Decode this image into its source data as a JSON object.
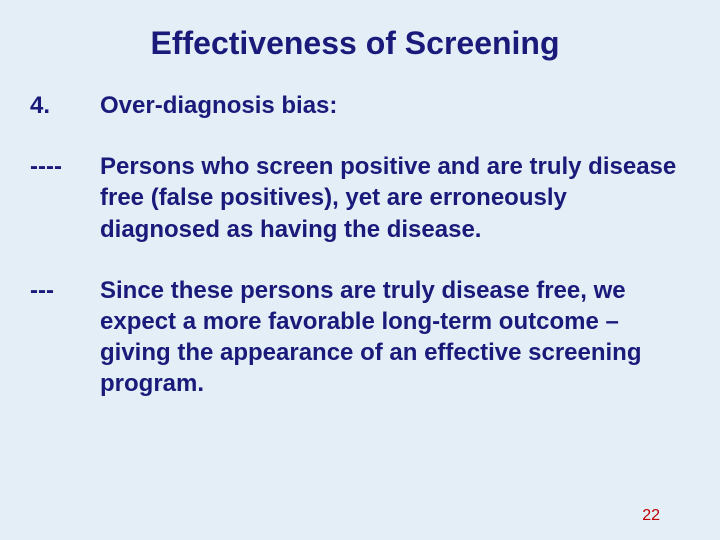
{
  "title": "Effectiveness of Screening",
  "items": [
    {
      "marker": "4.",
      "text": "Over-diagnosis bias:"
    },
    {
      "marker": "----",
      "text": "Persons who screen positive and are truly disease free (false positives), yet are  erroneously diagnosed as having the disease."
    },
    {
      "marker": "---",
      "text": "Since these persons are truly disease free, we expect a more favorable long-term outcome – giving the appearance of an effective screening program."
    }
  ],
  "page_number": "22",
  "colors": {
    "background": "#e3eef6",
    "text": "#1a1a7a",
    "page_number": "#c00000"
  },
  "typography": {
    "title_fontsize": 32,
    "body_fontsize": 24,
    "page_number_fontsize": 16,
    "font_family": "Arial",
    "font_weight": "bold"
  }
}
